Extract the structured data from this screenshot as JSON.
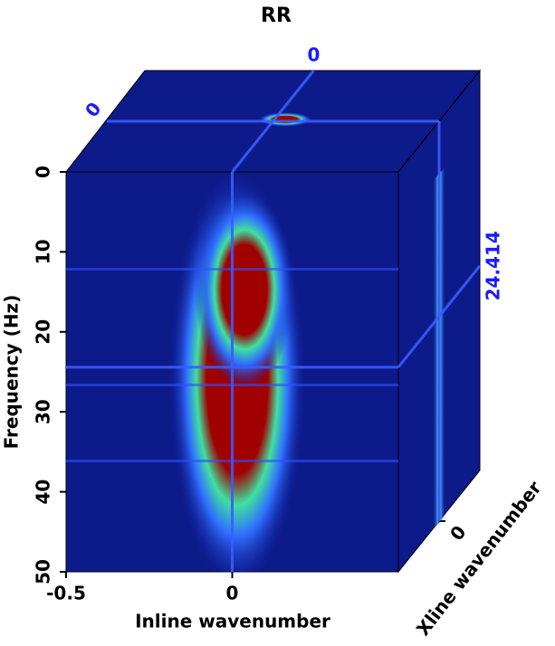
{
  "chart_data": {
    "type": "cube",
    "title": "RR",
    "xlabel": "Inline wavenumber",
    "ylabel": "Frequency (Hz)",
    "zlabel": "Xline wavenumber",
    "xlim": [
      -0.5,
      0.5
    ],
    "ylim": [
      0,
      50
    ],
    "zlim": [
      -0.5,
      0.5
    ],
    "xticks": [
      -0.5,
      0
    ],
    "yticks": [
      0,
      10,
      20,
      30,
      40,
      50
    ],
    "zticks": [
      0
    ],
    "slice_inline": 0,
    "slice_xline": 0,
    "slice_frequency": 24.414
  }
}
